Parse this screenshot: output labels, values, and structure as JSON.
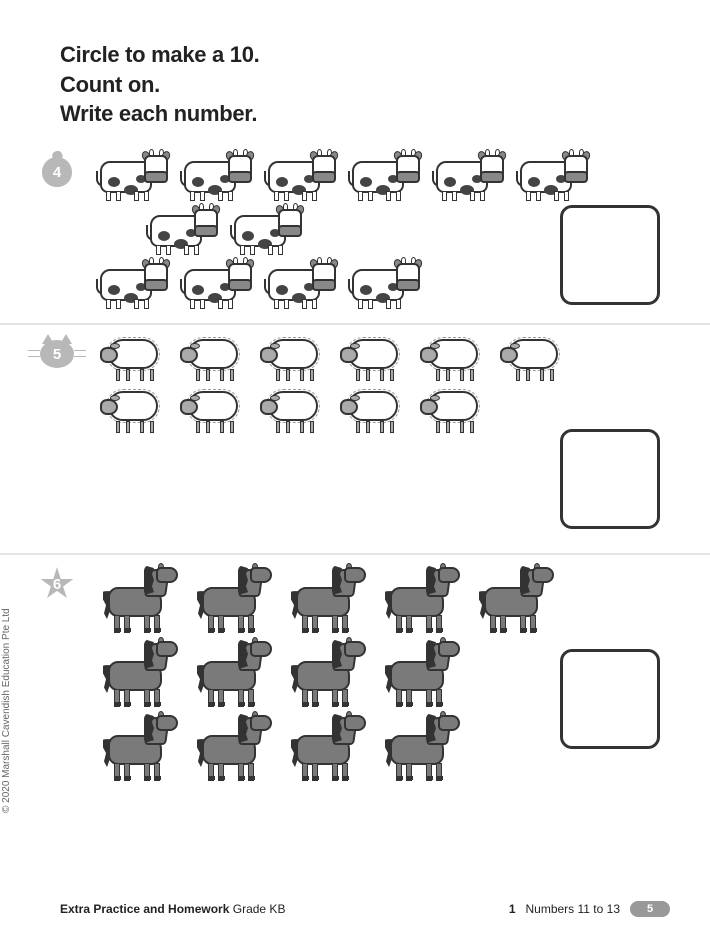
{
  "instructions": {
    "line1": "Circle to make a 10.",
    "line2": "Count on.",
    "line3": "Write each number."
  },
  "problems": {
    "p4": {
      "badge": "4",
      "animal": "cow",
      "rows": [
        6,
        2,
        4
      ]
    },
    "p5": {
      "badge": "5",
      "animal": "sheep",
      "rows": [
        6,
        5
      ]
    },
    "p6": {
      "badge": "6",
      "animal": "horse",
      "rows": [
        5,
        4,
        4
      ]
    }
  },
  "copyright": "© 2020 Marshall Cavendish Education Pte Ltd",
  "footer": {
    "book_title": "Extra Practice and Homework",
    "grade": "Grade KB",
    "chapter_num": "1",
    "chapter_title": "Numbers 11 to 13",
    "page_num": "5"
  },
  "colors": {
    "text": "#222222",
    "badge_bg": "#b8b8b8",
    "divider": "#e5e5e5",
    "box_border": "#333333",
    "horse_fill": "#7a7a7a",
    "sheep_head": "#aaaaaa",
    "cow_spot": "#444444"
  }
}
